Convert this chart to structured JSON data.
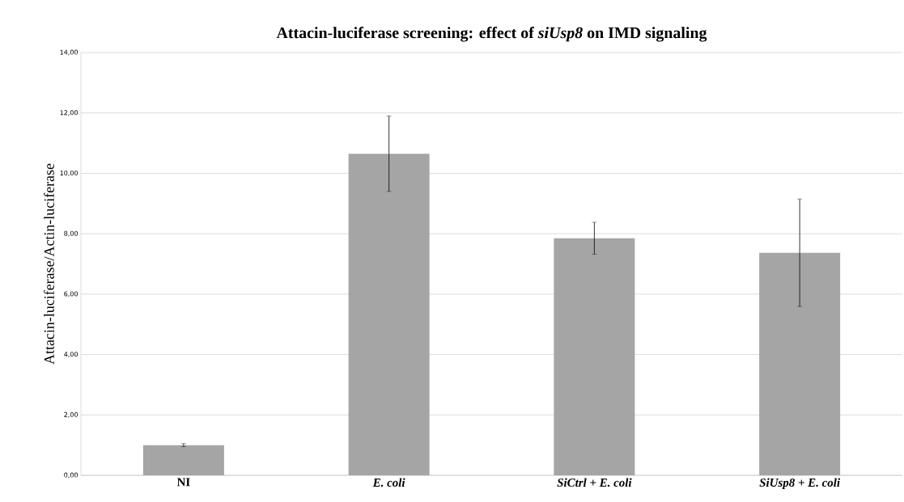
{
  "chart_data": {
    "type": "bar",
    "title": "Attacin-luciferase screening: effect of *siUsp8* on IMD signaling",
    "ylabel": "Attacin-luciferase/Actin-luciferase",
    "categories": [
      "NI",
      "*E. coli*",
      "*SiCtrl + E. coli*",
      "*SiUsp8 + E. coli*"
    ],
    "values": [
      1.0,
      10.65,
      7.85,
      7.37
    ],
    "errors": [
      0.05,
      1.25,
      0.53,
      1.78
    ],
    "color": "#a5a5a5",
    "ylim": [
      0,
      14
    ],
    "yticks": [
      {
        "value": 0,
        "label": "0,00"
      },
      {
        "value": 2,
        "label": "2,00"
      },
      {
        "value": 4,
        "label": "4,00"
      },
      {
        "value": 6,
        "label": "6,00"
      },
      {
        "value": 8,
        "label": "8,00"
      },
      {
        "value": 10,
        "label": "10,00"
      },
      {
        "value": 12,
        "label": "12,00"
      },
      {
        "value": 14,
        "label": "14,00"
      }
    ],
    "grid": "y"
  }
}
